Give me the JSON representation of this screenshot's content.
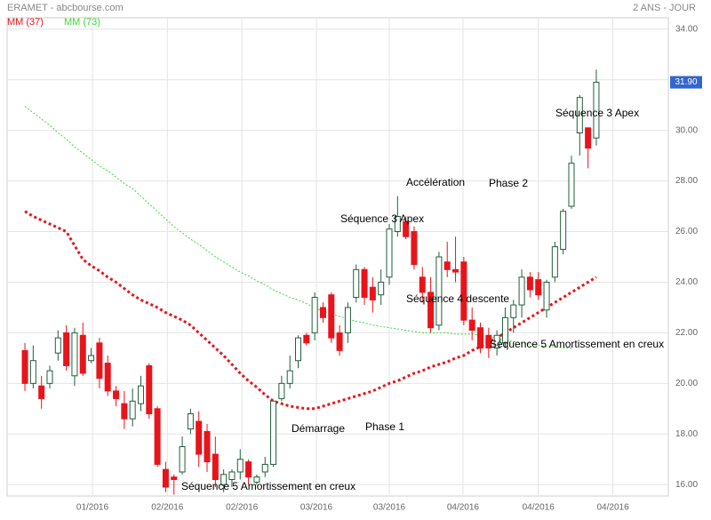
{
  "chart_data": {
    "type": "candlestick",
    "title": "ERAMET - abcbourse.com",
    "subtitle": "2 ANS - JOUR",
    "up_color": "#ffffff",
    "up_stroke": "#1f5f3a",
    "down_color": "#e8141b",
    "grid": true,
    "ylim": [
      15.55,
      34.45
    ],
    "yticks": [
      {
        "value": 16,
        "label": "16.00"
      },
      {
        "value": 18,
        "label": "18.00"
      },
      {
        "value": 20,
        "label": "20.00"
      },
      {
        "value": 22,
        "label": "22.00"
      },
      {
        "value": 24,
        "label": "24.00"
      },
      {
        "value": 26,
        "label": "26.00"
      },
      {
        "value": 28,
        "label": "28.00"
      },
      {
        "value": 30,
        "label": "30.00"
      },
      {
        "value": 32,
        "label": "32.00"
      },
      {
        "value": 34,
        "label": "34.00"
      }
    ],
    "xlim": [
      -2.15,
      77.7
    ],
    "xticks": [
      {
        "value": 8.15,
        "label": "01/2016"
      },
      {
        "value": 17.2,
        "label": "02/2016"
      },
      {
        "value": 26.2,
        "label": "02/2016"
      },
      {
        "value": 35.2,
        "label": "03/2016"
      },
      {
        "value": 44,
        "label": "03/2016"
      },
      {
        "value": 52.9,
        "label": "04/2016"
      },
      {
        "value": 62,
        "label": "04/2016"
      },
      {
        "value": 71,
        "label": "04/2016"
      }
    ],
    "last_price": {
      "value": 31.9,
      "label": "31.90"
    },
    "candles": {
      "open": [
        21.3,
        20.0,
        19.9,
        20.0,
        21.2,
        22.0,
        20.3,
        21.9,
        20.9,
        21.6,
        20.8,
        19.7,
        19.2,
        18.6,
        19.2,
        20.7,
        19.0,
        16.6,
        16.3,
        16.5,
        18.2,
        18.5,
        18.1,
        17.2,
        16.0,
        16.2,
        16.5,
        16.9,
        16.1,
        16.5,
        16.8,
        19.4,
        20.0,
        20.9,
        21.9,
        22.0,
        23.0,
        23.5,
        22.0,
        22.0,
        23.4,
        24.5,
        23.8,
        23.5,
        24.2,
        26.0,
        26.4,
        26.0,
        24.2,
        23.6,
        22.3,
        24.8,
        24.5,
        24.8,
        22.5,
        22.2,
        21.9,
        21.4,
        21.6,
        22.6,
        23.1,
        24.2,
        24.1,
        22.9,
        24.2,
        25.3,
        27.0,
        29.9,
        30.1,
        29.7
      ],
      "high": [
        21.6,
        21.5,
        20.3,
        20.7,
        22.1,
        22.3,
        22.2,
        22.4,
        21.4,
        21.8,
        21.1,
        19.9,
        19.7,
        19.8,
        20.3,
        20.8,
        19.1,
        16.9,
        16.4,
        17.9,
        19.0,
        18.9,
        18.4,
        17.9,
        16.6,
        16.6,
        17.4,
        17.0,
        16.4,
        17.1,
        19.3,
        20.3,
        21.1,
        21.9,
        22.0,
        23.6,
        23.2,
        23.6,
        22.3,
        23.2,
        24.7,
        24.6,
        24.2,
        24.5,
        26.3,
        27.4,
        26.6,
        26.2,
        24.6,
        24.2,
        25.2,
        25.6,
        25.8,
        25.0,
        23.0,
        22.4,
        22.2,
        22.1,
        23.0,
        23.3,
        24.5,
        24.4,
        24.4,
        24.1,
        25.6,
        26.9,
        29.0,
        31.4,
        30.1,
        32.4
      ],
      "low": [
        19.7,
        19.8,
        19.0,
        19.8,
        20.9,
        20.5,
        19.9,
        20.3,
        20.8,
        19.8,
        19.5,
        19.1,
        18.2,
        18.3,
        18.9,
        18.6,
        16.7,
        15.7,
        15.6,
        16.4,
        18.0,
        16.7,
        16.5,
        15.9,
        15.7,
        15.9,
        16.2,
        16.0,
        16.0,
        16.3,
        16.7,
        19.3,
        19.8,
        20.6,
        21.5,
        21.7,
        22.4,
        21.6,
        21.1,
        21.6,
        23.2,
        23.1,
        22.8,
        23.1,
        23.9,
        25.8,
        25.7,
        24.5,
        23.2,
        22.0,
        22.1,
        24.2,
        24.0,
        22.3,
        21.7,
        21.2,
        21.0,
        21.1,
        21.4,
        22.0,
        22.6,
        23.4,
        23.3,
        22.6,
        24.0,
        25.1,
        26.9,
        29.0,
        28.5,
        29.4
      ],
      "close": [
        20.0,
        20.9,
        19.4,
        20.5,
        21.8,
        20.7,
        22.0,
        20.4,
        21.1,
        20.2,
        19.7,
        19.4,
        18.6,
        19.3,
        19.9,
        18.8,
        16.8,
        15.9,
        16.2,
        17.5,
        18.8,
        17.2,
        16.9,
        16.2,
        16.4,
        16.5,
        17.0,
        16.3,
        16.3,
        16.8,
        19.3,
        20.0,
        20.5,
        21.8,
        21.6,
        23.4,
        22.6,
        21.8,
        21.3,
        23.0,
        24.5,
        23.4,
        23.3,
        24.0,
        26.1,
        26.6,
        25.8,
        24.7,
        23.6,
        22.2,
        25.0,
        24.5,
        24.4,
        22.5,
        22.1,
        21.4,
        21.4,
        21.9,
        22.6,
        23.1,
        24.2,
        23.7,
        23.5,
        24.0,
        25.4,
        26.8,
        28.7,
        31.3,
        29.3,
        31.9
      ]
    },
    "series": [
      {
        "name": "MM (37)",
        "color": "#e8141b",
        "values": [
          26.8,
          26.6,
          26.45,
          26.3,
          26.15,
          26.0,
          25.45,
          24.9,
          24.65,
          24.45,
          24.2,
          24.0,
          23.75,
          23.5,
          23.3,
          23.15,
          23.0,
          22.8,
          22.65,
          22.5,
          22.3,
          22.0,
          21.7,
          21.4,
          21.1,
          20.75,
          20.4,
          20.1,
          19.85,
          19.55,
          19.3,
          19.2,
          19.1,
          19.05,
          19.0,
          19.0,
          19.1,
          19.2,
          19.3,
          19.4,
          19.5,
          19.6,
          19.7,
          19.85,
          20.0,
          20.1,
          20.25,
          20.4,
          20.5,
          20.65,
          20.75,
          20.85,
          21.0,
          21.1,
          21.3,
          21.45,
          21.65,
          21.8,
          22.0,
          22.2,
          22.4,
          22.6,
          22.8,
          23.0,
          23.2,
          23.4,
          23.6,
          23.8,
          24.0,
          24.2
        ]
      },
      {
        "name": "MM (73)",
        "color": "#33dd33",
        "values": [
          30.95,
          30.7,
          30.45,
          30.2,
          29.9,
          29.65,
          29.35,
          29.1,
          28.85,
          28.6,
          28.4,
          28.15,
          27.9,
          27.7,
          27.4,
          27.1,
          26.8,
          26.5,
          26.2,
          25.95,
          25.7,
          25.5,
          25.25,
          25.0,
          24.8,
          24.6,
          24.4,
          24.25,
          24.05,
          23.9,
          23.7,
          23.55,
          23.4,
          23.3,
          23.15,
          23.0,
          22.85,
          22.75,
          22.65,
          22.55,
          22.45,
          22.4,
          22.3,
          22.25,
          22.2,
          22.15,
          22.1,
          22.05,
          22.0,
          22.0,
          22.0,
          22.0,
          21.95,
          21.95,
          21.95,
          21.9,
          21.85,
          21.8,
          21.7,
          21.65,
          21.6,
          21.55,
          21.5,
          21.45,
          21.45,
          21.4,
          21.4,
          null,
          null,
          null
        ]
      }
    ],
    "annotations": [
      "Séquence 3 Apex",
      "Accélération",
      "Phase 2",
      "Séquence 3 Apex",
      "Séquence 4 descente",
      "Séquence 5 Amortissement en creux",
      "Démarrage",
      "Phase 1",
      "Séquence 5 Amortissement en creux"
    ]
  }
}
